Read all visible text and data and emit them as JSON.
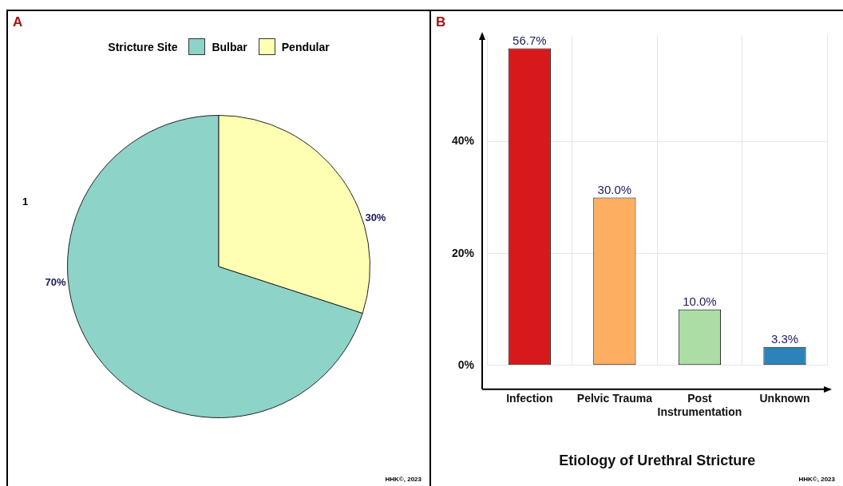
{
  "chart_data": [
    {
      "type": "pie",
      "legend_title": "Stricture Site",
      "categories": [
        "Bulbar",
        "Pendular"
      ],
      "values": [
        70,
        30
      ],
      "colors": [
        "#8dd3c7",
        "#ffffb3"
      ],
      "value_labels": [
        "70%",
        "30%"
      ],
      "legend": "top",
      "annotations": [
        "A",
        "1",
        "HHK©, 2023"
      ]
    },
    {
      "type": "bar",
      "xlabel": "Etiology of Urethral Stricture",
      "categories": [
        "Infection",
        "Pelvic Trauma",
        "Post Instrumentation",
        "Unknown"
      ],
      "values": [
        56.7,
        30.0,
        10.0,
        3.3
      ],
      "colors": [
        "#d7191c",
        "#fdae61",
        "#abdda4",
        "#2b83ba"
      ],
      "value_labels": [
        "56.7%",
        "30.0%",
        "10.0%",
        "3.3%"
      ],
      "ylim": [
        0,
        59
      ],
      "yticks": [
        {
          "value": 0,
          "label": "0%"
        },
        {
          "value": 20,
          "label": "20%"
        },
        {
          "value": 40,
          "label": "40%"
        }
      ],
      "grid": true,
      "legend": false,
      "annotations": [
        "B",
        "HHK©, 2023"
      ]
    }
  ]
}
